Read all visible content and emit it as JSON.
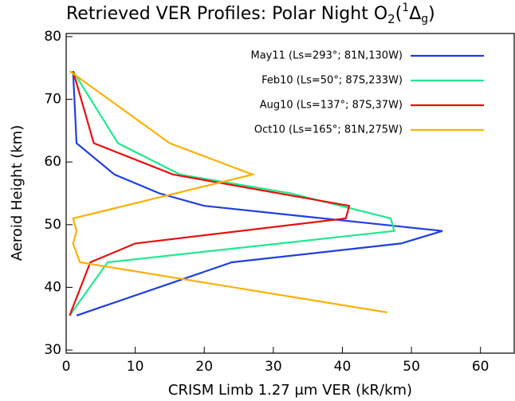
{
  "chart_data": {
    "type": "line",
    "title": [
      "Retrieved VER Profiles: Polar Night O",
      "2",
      "(",
      "1",
      "Δ",
      "g",
      ")"
    ],
    "x_label": "CRISM Limb 1.27 μm VER (kR/km)",
    "y_label": "Aeroid Height (km)",
    "xlim": [
      0,
      65
    ],
    "xticks": [
      0,
      10,
      20,
      30,
      40,
      50,
      60
    ],
    "ylim": [
      29.5,
      80.5
    ],
    "yticks": [
      30,
      40,
      50,
      60,
      70,
      80
    ],
    "legend": "upper right",
    "series": [
      {
        "name": "May11 (Ls=293°; 81N,130W)",
        "color": "#1f3fe0",
        "x": [
          1,
          1.5,
          7,
          13.5,
          20,
          54.5,
          48.5,
          24,
          1.5
        ],
        "values": [
          74.5,
          63,
          58,
          55,
          53,
          49,
          47,
          44,
          35.5
        ]
      },
      {
        "name": "Feb10 (Ls=50°; 87S,233W)",
        "color": "#20e890",
        "x": [
          1,
          7.5,
          16.5,
          32.5,
          47,
          47.5,
          6,
          0.5
        ],
        "values": [
          74.5,
          63,
          58,
          55,
          51,
          49,
          44,
          35.5
        ]
      },
      {
        "name": "Aug10 (Ls=137°; 87S,37W)",
        "color": "#e81010",
        "x": [
          1,
          4,
          15.5,
          41,
          40.5,
          10,
          3.5,
          0.5
        ],
        "values": [
          74.5,
          63,
          58,
          53,
          51,
          47,
          44,
          35.5
        ]
      },
      {
        "name": "Oct10 (Ls=165°; 81N,275W)",
        "color": "#ffb000",
        "x": [
          0.5,
          15,
          27,
          1,
          1.5,
          1,
          2,
          46.5
        ],
        "values": [
          74.5,
          63,
          58,
          51,
          49,
          47,
          44,
          36
        ]
      }
    ]
  }
}
